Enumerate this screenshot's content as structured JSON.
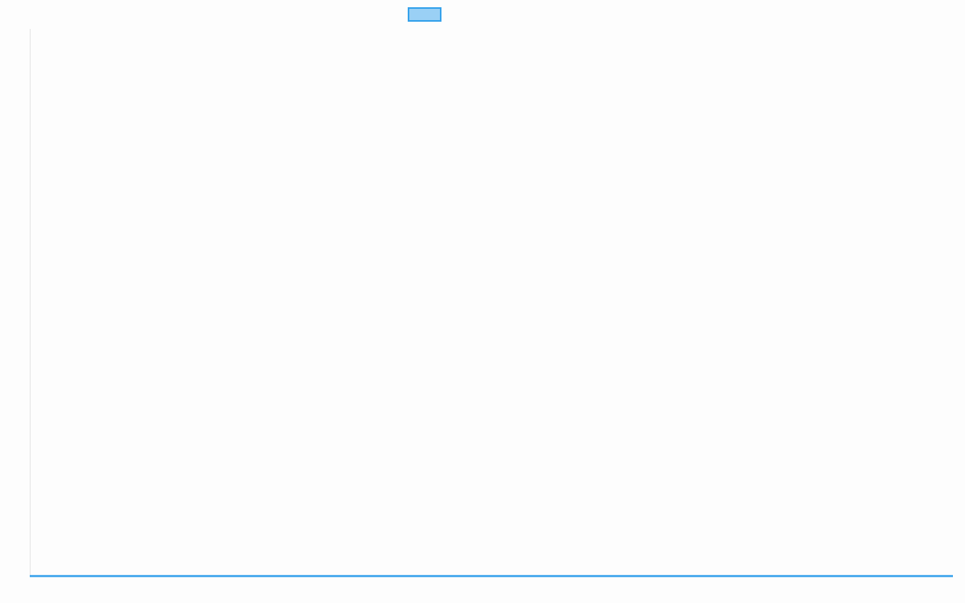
{
  "chart_data": {
    "type": "line",
    "title": "",
    "xlabel": "",
    "ylabel": "",
    "categories": [],
    "series": [
      {
        "values": [],
        "color": "#36a2eb",
        "fill": "#9ad0f5"
      }
    ],
    "legend": {
      "position": "top",
      "label": ""
    },
    "grid": false,
    "colors": {
      "axis": "#e5e5e5",
      "series": "#36a2eb",
      "background": "#fdfdfd"
    }
  }
}
